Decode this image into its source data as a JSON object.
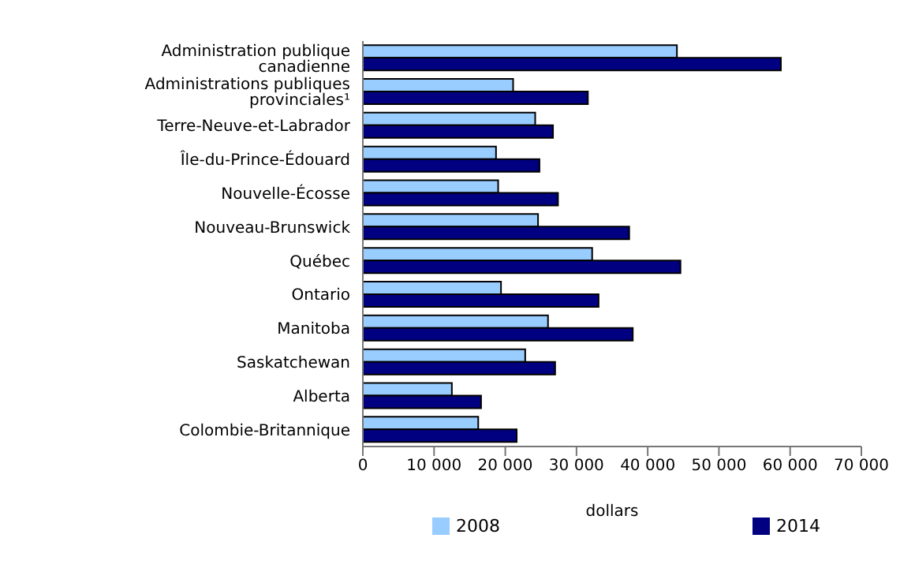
{
  "chart_data": {
    "type": "bar",
    "orientation": "horizontal",
    "xlabel": "dollars",
    "categories": [
      "Administration publique canadienne",
      "Administrations publiques provinciales¹",
      "Terre-Neuve-et-Labrador",
      "Île-du-Prince-Édouard",
      "Nouvelle-Écosse",
      "Nouveau-Brunswick",
      "Québec",
      "Ontario",
      "Manitoba",
      "Saskatchewan",
      "Alberta",
      "Colombie-Britannique"
    ],
    "series": [
      {
        "name": "2008",
        "color": "#99ccff",
        "values": [
          44100,
          21100,
          24200,
          18700,
          19000,
          24600,
          32200,
          19400,
          26000,
          22800,
          12500,
          16200
        ]
      },
      {
        "name": "2014",
        "color": "#000080",
        "values": [
          58700,
          31600,
          26700,
          24800,
          27400,
          37400,
          44600,
          33100,
          37900,
          27000,
          16600,
          21600
        ]
      }
    ],
    "xlim": [
      0,
      70000
    ],
    "xticks": [
      {
        "value": 0,
        "label": "0"
      },
      {
        "value": 10000,
        "label": "10 000"
      },
      {
        "value": 20000,
        "label": "20 000"
      },
      {
        "value": 30000,
        "label": "30 000"
      },
      {
        "value": 40000,
        "label": "40 000"
      },
      {
        "value": 50000,
        "label": "50 000"
      },
      {
        "value": 60000,
        "label": "60 000"
      },
      {
        "value": 70000,
        "label": "70 000"
      }
    ],
    "grid": false,
    "legend": "bottom"
  }
}
